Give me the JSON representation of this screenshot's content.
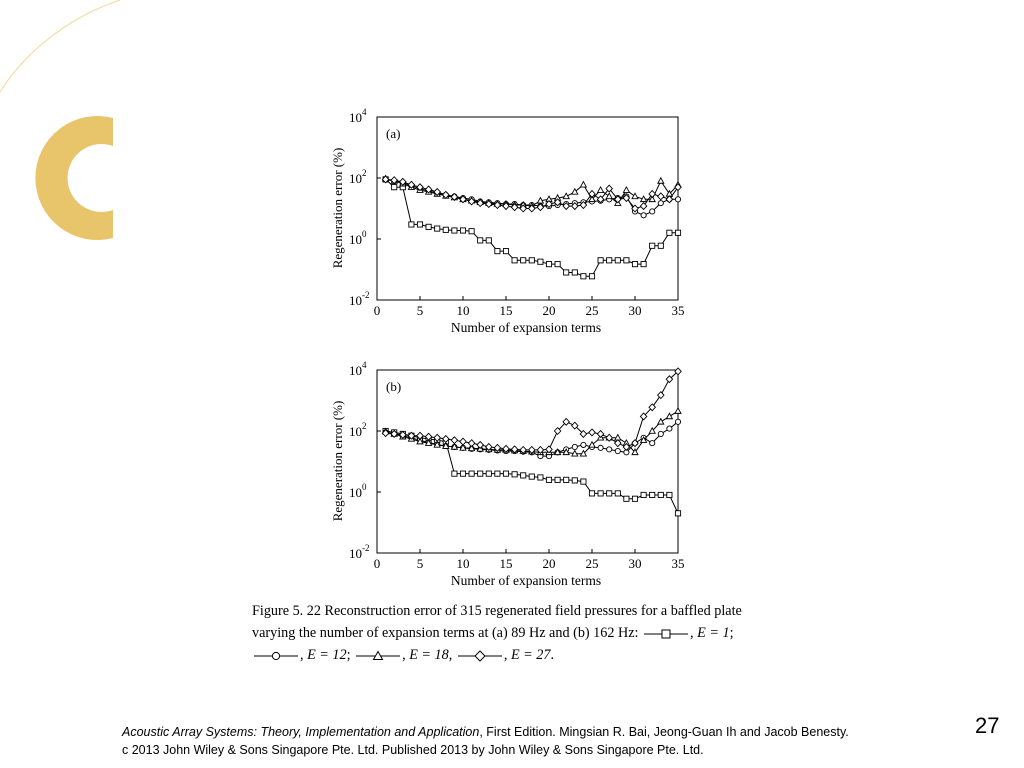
{
  "slide": {
    "accent_color": "#e8c46a",
    "accent_light_color": "#f3dfa7",
    "page_number": "27"
  },
  "caption": {
    "line1": "Figure 5. 22 Reconstruction  error of 315 regenerated field pressures  for a baffled plate",
    "line2_text": "varying the number of expansion  terms at (a) 89 Hz and (b) 162 Hz:",
    "legend": [
      {
        "marker": "square",
        "label": "E = 1"
      },
      {
        "marker": "circle",
        "label": "E = 12"
      },
      {
        "marker": "triangle",
        "label": "E = 18"
      },
      {
        "marker": "diamond",
        "label": "E = 27"
      }
    ],
    "sep_comma": ",",
    "sep_semicolon": ";",
    "sep_end": "."
  },
  "footer": {
    "book_title": "Acoustic Array Systems: Theory, Implementation and Application",
    "book_rest": ", First Edition. Mingsian R. Bai, Jeong-Guan Ih and Jacob Benesty.",
    "copyright": "c 2013 John Wiley & Sons Singapore Pte. Ltd. Published 2013 by John Wiley & Sons Singapore Pte. Ltd."
  },
  "chart_data": [
    {
      "type": "line",
      "panel_label": "(a)",
      "title": "",
      "xlabel": "Number of expansion terms",
      "ylabel": "Regeneration error (%)",
      "xlim": [
        0,
        35
      ],
      "ylim": [
        0.01,
        10000
      ],
      "yscale": "log",
      "grid": false,
      "x_ticks": [
        0,
        5,
        10,
        15,
        20,
        25,
        30,
        35
      ],
      "y_ticks": [
        {
          "base": "10",
          "exp": "-2",
          "value": 0.01
        },
        {
          "base": "10",
          "exp": "0",
          "value": 1
        },
        {
          "base": "10",
          "exp": "2",
          "value": 100
        },
        {
          "base": "10",
          "exp": "4",
          "value": 10000
        }
      ],
      "x": [
        1,
        2,
        3,
        4,
        5,
        6,
        7,
        8,
        9,
        10,
        11,
        12,
        13,
        14,
        15,
        16,
        17,
        18,
        19,
        20,
        21,
        22,
        23,
        24,
        25,
        26,
        27,
        28,
        29,
        30,
        31,
        32,
        33,
        34,
        35
      ],
      "series": [
        {
          "name": "E = 1",
          "marker": "square",
          "values": [
            90,
            50,
            50,
            3,
            3,
            2.5,
            2.2,
            2,
            1.9,
            1.9,
            1.8,
            0.9,
            0.9,
            0.4,
            0.4,
            0.2,
            0.2,
            0.2,
            0.18,
            0.15,
            0.15,
            0.08,
            0.08,
            0.06,
            0.06,
            0.2,
            0.2,
            0.2,
            0.2,
            0.15,
            0.15,
            0.6,
            0.6,
            1.6,
            1.6
          ]
        },
        {
          "name": "E = 12",
          "marker": "circle",
          "values": [
            90,
            80,
            70,
            55,
            45,
            38,
            32,
            28,
            25,
            22,
            20,
            17,
            16,
            15,
            14,
            14,
            13,
            13,
            12,
            12,
            13,
            14,
            15,
            16,
            17,
            18,
            20,
            22,
            25,
            8,
            6,
            8,
            15,
            20,
            20
          ]
        },
        {
          "name": "E = 18",
          "marker": "triangle",
          "values": [
            95,
            80,
            65,
            50,
            40,
            35,
            30,
            26,
            23,
            20,
            18,
            16,
            15,
            14,
            14,
            13,
            13,
            12,
            18,
            20,
            22,
            25,
            35,
            60,
            20,
            40,
            25,
            15,
            40,
            25,
            20,
            20,
            80,
            30,
            60
          ]
        },
        {
          "name": "E = 27",
          "marker": "diamond",
          "values": [
            90,
            85,
            75,
            60,
            50,
            42,
            35,
            28,
            24,
            20,
            17,
            15,
            14,
            13,
            12,
            11,
            10,
            10,
            11,
            14,
            16,
            12,
            12,
            13,
            30,
            20,
            45,
            20,
            22,
            10,
            12,
            30,
            25,
            20,
            50
          ]
        }
      ]
    },
    {
      "type": "line",
      "panel_label": "(b)",
      "title": "",
      "xlabel": "Number of expansion terms",
      "ylabel": "Regeneration error (%)",
      "xlim": [
        0,
        35
      ],
      "ylim": [
        0.01,
        10000
      ],
      "yscale": "log",
      "grid": false,
      "x_ticks": [
        0,
        5,
        10,
        15,
        20,
        25,
        30,
        35
      ],
      "y_ticks": [
        {
          "base": "10",
          "exp": "-2",
          "value": 0.01
        },
        {
          "base": "10",
          "exp": "0",
          "value": 1
        },
        {
          "base": "10",
          "exp": "2",
          "value": 100
        },
        {
          "base": "10",
          "exp": "4",
          "value": 10000
        }
      ],
      "x": [
        1,
        2,
        3,
        4,
        5,
        6,
        7,
        8,
        9,
        10,
        11,
        12,
        13,
        14,
        15,
        16,
        17,
        18,
        19,
        20,
        21,
        22,
        23,
        24,
        25,
        26,
        27,
        28,
        29,
        30,
        31,
        32,
        33,
        34,
        35
      ],
      "series": [
        {
          "name": "E = 1",
          "marker": "square",
          "values": [
            100,
            90,
            80,
            70,
            60,
            55,
            50,
            45,
            4,
            4,
            4,
            4,
            4,
            4,
            4,
            3.8,
            3.5,
            3.2,
            3,
            2.5,
            2.5,
            2.5,
            2.4,
            2.2,
            0.9,
            0.9,
            0.9,
            0.9,
            0.6,
            0.6,
            0.8,
            0.8,
            0.8,
            0.8,
            0.2
          ]
        },
        {
          "name": "E = 12",
          "marker": "circle",
          "values": [
            90,
            80,
            70,
            60,
            50,
            42,
            36,
            32,
            30,
            28,
            26,
            25,
            24,
            23,
            22,
            22,
            21,
            20,
            15,
            15,
            20,
            25,
            30,
            35,
            30,
            28,
            25,
            22,
            20,
            40,
            60,
            40,
            80,
            120,
            200
          ]
        },
        {
          "name": "E = 18",
          "marker": "triangle",
          "values": [
            95,
            80,
            65,
            55,
            45,
            40,
            35,
            32,
            30,
            28,
            27,
            26,
            25,
            24,
            24,
            23,
            22,
            21,
            20,
            20,
            20,
            20,
            18,
            18,
            35,
            60,
            60,
            60,
            40,
            20,
            50,
            100,
            200,
            300,
            450
          ]
        },
        {
          "name": "E = 27",
          "marker": "diamond",
          "values": [
            85,
            80,
            75,
            70,
            70,
            65,
            60,
            55,
            50,
            45,
            40,
            35,
            30,
            28,
            26,
            25,
            24,
            24,
            24,
            25,
            100,
            200,
            150,
            80,
            90,
            80,
            60,
            40,
            30,
            40,
            300,
            600,
            1500,
            5000,
            9000
          ]
        }
      ]
    }
  ]
}
